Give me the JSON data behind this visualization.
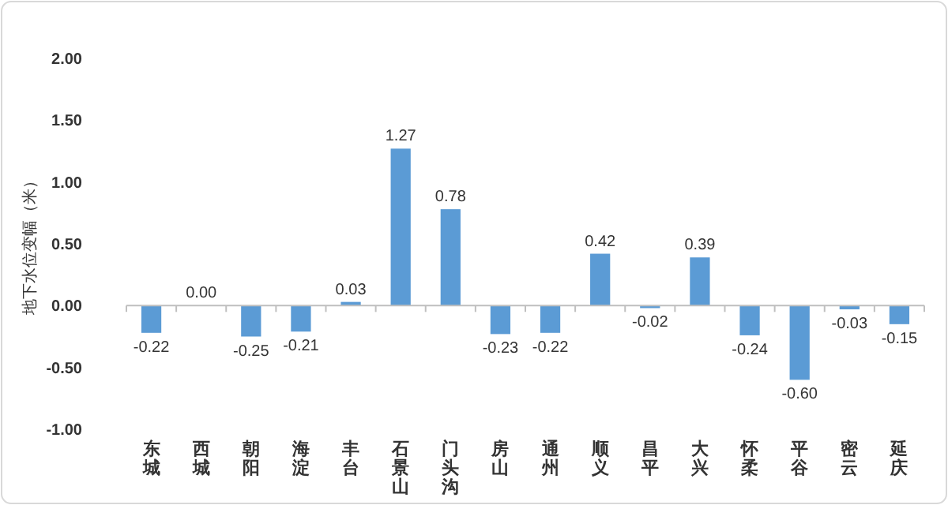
{
  "chart_data": {
    "type": "bar",
    "ylabel": "地下水位变幅（米）",
    "categories": [
      "东城",
      "西城",
      "朝阳",
      "海淀",
      "丰台",
      "石景山",
      "门头沟",
      "房山",
      "通州",
      "顺义",
      "昌平",
      "大兴",
      "怀柔",
      "平谷",
      "密云",
      "延庆"
    ],
    "values": [
      -0.22,
      0.0,
      -0.25,
      -0.21,
      0.03,
      1.27,
      0.78,
      -0.23,
      -0.22,
      0.42,
      -0.02,
      0.39,
      -0.24,
      -0.6,
      -0.03,
      -0.15
    ],
    "color": "#5b9bd5",
    "ylim": [
      -1,
      2
    ],
    "yticks": [
      {
        "value": -1,
        "label": "-1.00"
      },
      {
        "value": -0.5,
        "label": "-0.50"
      },
      {
        "value": 0,
        "label": "0.00"
      },
      {
        "value": 0.5,
        "label": "0.50"
      },
      {
        "value": 1,
        "label": "1.00"
      },
      {
        "value": 1.5,
        "label": "1.50"
      },
      {
        "value": 2,
        "label": "2.00"
      }
    ],
    "value_labels": [
      "-0.22",
      "0.00",
      "-0.25",
      "-0.21",
      "0.03",
      "1.27",
      "0.78",
      "-0.23",
      "-0.22",
      "0.42",
      "-0.02",
      "0.39",
      "-0.24",
      "-0.60",
      "-0.03",
      "-0.15"
    ],
    "data_labels": false
  }
}
